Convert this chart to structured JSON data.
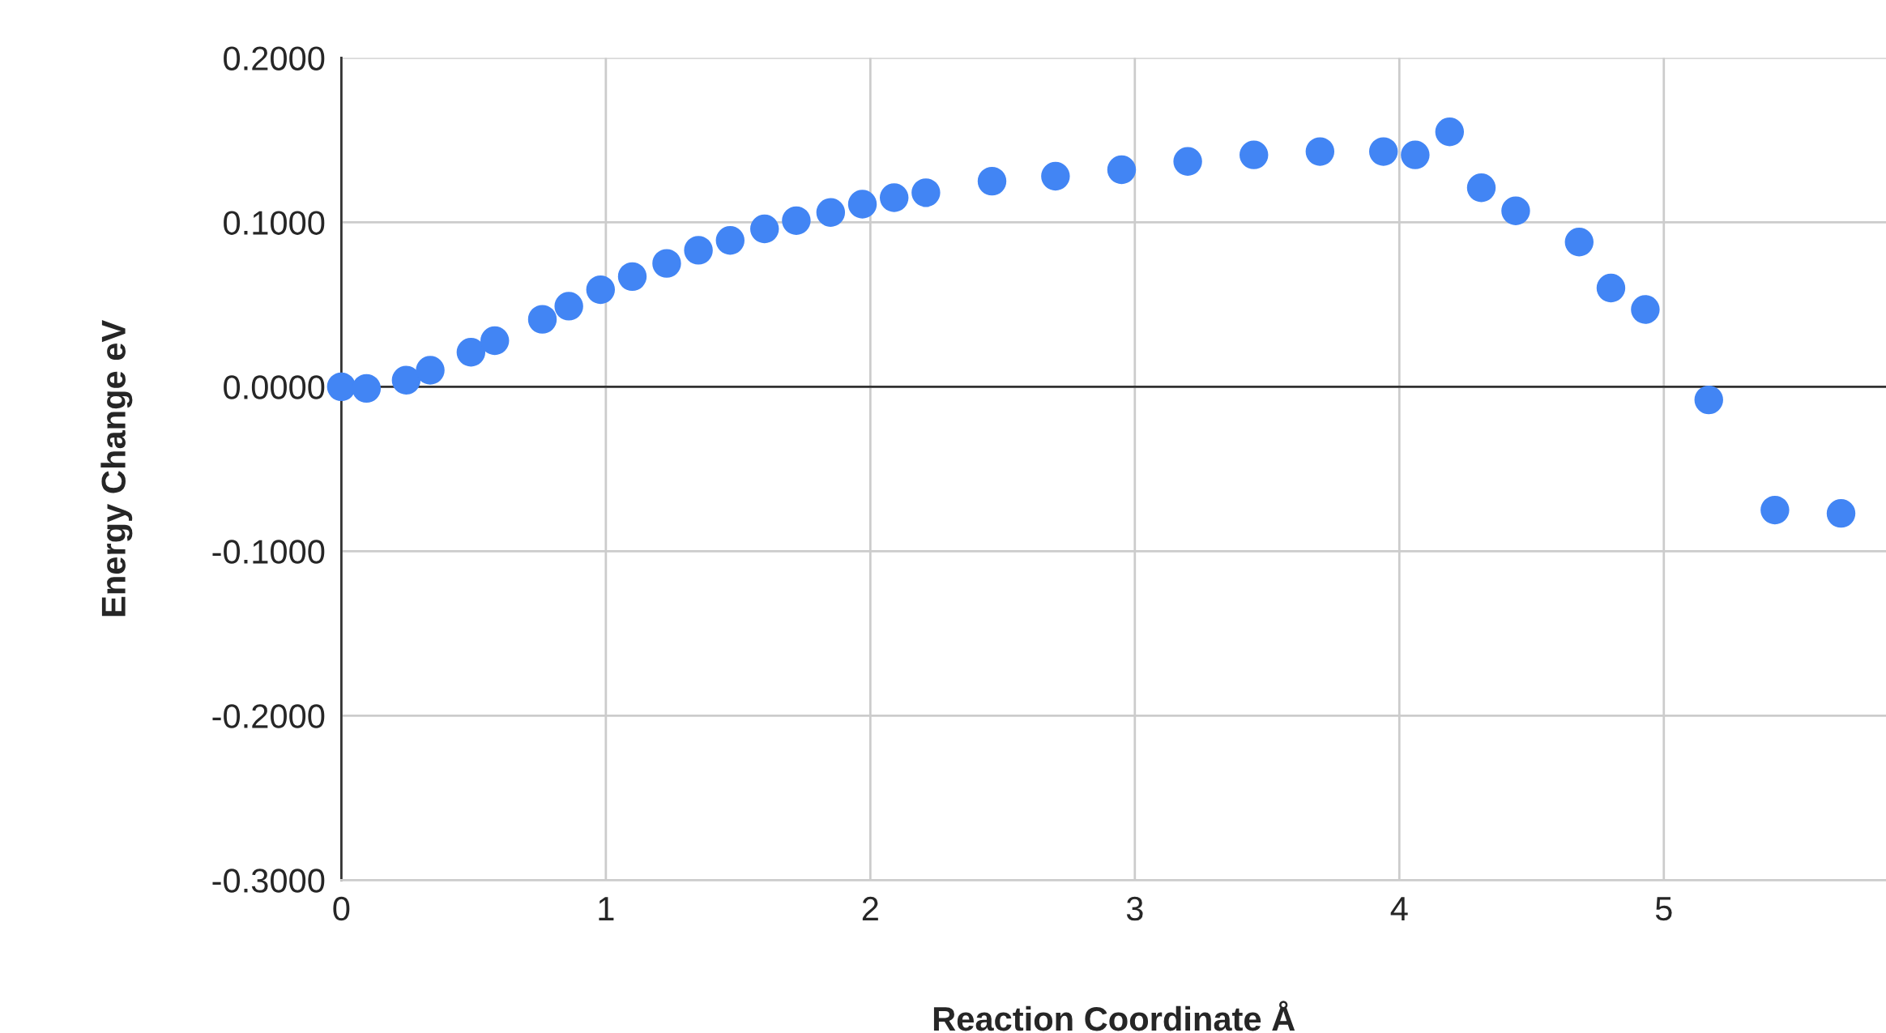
{
  "chart_data": {
    "type": "scatter",
    "xlabel": "Reaction Coordinate Å",
    "ylabel": "Energy Change eV",
    "x": [
      0,
      0.095,
      0.245,
      0.336,
      0.49,
      0.58,
      0.76,
      0.86,
      0.98,
      1.1,
      1.23,
      1.35,
      1.47,
      1.6,
      1.72,
      1.85,
      1.97,
      2.09,
      2.21,
      2.46,
      2.7,
      2.95,
      3.2,
      3.45,
      3.7,
      3.94,
      4.06,
      4.19,
      4.31,
      4.44,
      4.68,
      4.8,
      4.93,
      5.17,
      5.42,
      5.67
    ],
    "series": [
      {
        "color": "#4285f4",
        "values": [
          0,
          -0.001,
          0.004,
          0.01,
          0.021,
          0.028,
          0.041,
          0.049,
          0.059,
          0.067,
          0.075,
          0.083,
          0.089,
          0.096,
          0.101,
          0.106,
          0.111,
          0.115,
          0.118,
          0.125,
          0.128,
          0.132,
          0.137,
          0.141,
          0.143,
          0.143,
          0.141,
          0.155,
          0.121,
          0.107,
          0.088,
          0.06,
          0.047,
          -0.008,
          -0.075,
          -0.077
        ]
      }
    ],
    "xlim": [
      0,
      5.84
    ],
    "xticks": [
      0,
      1,
      2,
      3,
      4,
      5
    ],
    "ylim": [
      -0.3,
      0.2
    ],
    "yticks": [
      {
        "value": -0.3,
        "label": "-0.3000"
      },
      {
        "value": -0.2,
        "label": "-0.2000"
      },
      {
        "value": -0.1,
        "label": "-0.1000"
      },
      {
        "value": 0,
        "label": "0.0000"
      },
      {
        "value": 0.1,
        "label": "0.1000"
      },
      {
        "value": 0.2,
        "label": "0.2000"
      }
    ],
    "ref_lines": [
      {
        "axis": "y",
        "value": 0,
        "color": "#333333"
      }
    ],
    "grid": true,
    "marker": "circle",
    "legend": false
  }
}
